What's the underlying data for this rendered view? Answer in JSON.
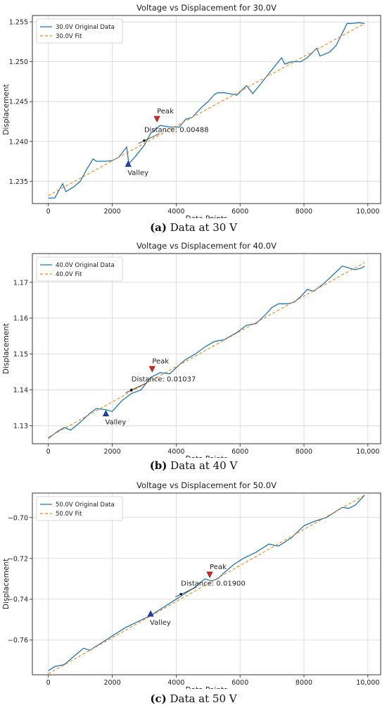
{
  "chart_data": [
    {
      "type": "line",
      "title": "Voltage vs Displacement for 30.0V",
      "xlabel": "Data Points",
      "ylabel": "Displacement",
      "xlim": [
        -500,
        10400
      ],
      "ylim": [
        1.2322,
        1.2558
      ],
      "xticks": [
        0,
        2000,
        4000,
        6000,
        8000,
        10000
      ],
      "xtick_labels": [
        "0",
        "2000",
        "4000",
        "6000",
        "8000",
        "10,000"
      ],
      "yticks": [
        1.235,
        1.24,
        1.245,
        1.25,
        1.255
      ],
      "ytick_labels": [
        "1.235",
        "1.240",
        "1.245",
        "1.250",
        "1.255"
      ],
      "grid": true,
      "legend": "top-left",
      "series": [
        {
          "name": "30.0V Original Data",
          "color": "#1f77b4",
          "style": "solid",
          "x": [
            0,
            200,
            450,
            550,
            800,
            1000,
            1200,
            1400,
            1500,
            1800,
            2000,
            2200,
            2450,
            2520,
            2700,
            3000,
            3200,
            3500,
            3800,
            4100,
            4300,
            4500,
            4800,
            5000,
            5200,
            5300,
            5500,
            5800,
            5900,
            6200,
            6400,
            6700,
            7000,
            7300,
            7400,
            7600,
            7900,
            8100,
            8400,
            8500,
            8800,
            9000,
            9250,
            9350,
            9500,
            9700,
            9900
          ],
          "y": [
            1.2329,
            1.2329,
            1.2347,
            1.2337,
            1.2343,
            1.235,
            1.2365,
            1.2378,
            1.2375,
            1.2375,
            1.2376,
            1.238,
            1.2393,
            1.2372,
            1.238,
            1.2395,
            1.241,
            1.242,
            1.2418,
            1.2418,
            1.2428,
            1.243,
            1.2443,
            1.245,
            1.2459,
            1.2461,
            1.2461,
            1.2459,
            1.2458,
            1.247,
            1.246,
            1.2475,
            1.249,
            1.2505,
            1.2497,
            1.25,
            1.25,
            1.2505,
            1.2517,
            1.2507,
            1.2512,
            1.252,
            1.254,
            1.2548,
            1.2548,
            1.2549,
            1.2548
          ]
        },
        {
          "name": "30.0V Fit",
          "color": "#ff7f0e",
          "style": "dashed",
          "x": [
            0,
            9900
          ],
          "y": [
            1.2332,
            1.2548
          ]
        }
      ],
      "annotations": {
        "peak": {
          "label": "Peak",
          "x": 3400,
          "y": 1.2428
        },
        "valley": {
          "label": "Valley",
          "x": 2500,
          "y": 1.2372
        },
        "distance": {
          "label": "Distance: 0.00488",
          "x": 3000,
          "y": 1.2401
        }
      }
    },
    {
      "type": "line",
      "title": "Voltage vs Displacement for 40.0V",
      "xlabel": "Data Points",
      "ylabel": "Displacement",
      "xlim": [
        -500,
        10400
      ],
      "ylim": [
        1.125,
        1.178
      ],
      "xticks": [
        0,
        2000,
        4000,
        6000,
        8000,
        10000
      ],
      "xtick_labels": [
        "0",
        "2000",
        "4000",
        "6000",
        "8000",
        "10,000"
      ],
      "yticks": [
        1.13,
        1.14,
        1.15,
        1.16,
        1.17
      ],
      "ytick_labels": [
        "1.13",
        "1.14",
        "1.15",
        "1.16",
        "1.17"
      ],
      "grid": true,
      "legend": "top-left",
      "series": [
        {
          "name": "40.0V Original Data",
          "color": "#1f77b4",
          "style": "solid",
          "x": [
            0,
            300,
            500,
            700,
            1000,
            1300,
            1500,
            1800,
            2000,
            2300,
            2600,
            2900,
            3200,
            3500,
            3800,
            4100,
            4300,
            4600,
            4900,
            5200,
            5500,
            5900,
            6200,
            6500,
            6800,
            7000,
            7200,
            7500,
            7700,
            7900,
            8100,
            8300,
            8600,
            8900,
            9200,
            9400,
            9600,
            9800,
            9900
          ],
          "y": [
            1.1265,
            1.1285,
            1.1295,
            1.1288,
            1.131,
            1.1335,
            1.1348,
            1.1345,
            1.134,
            1.137,
            1.139,
            1.14,
            1.1435,
            1.1448,
            1.1445,
            1.147,
            1.1485,
            1.15,
            1.152,
            1.1535,
            1.154,
            1.156,
            1.158,
            1.1585,
            1.161,
            1.163,
            1.164,
            1.164,
            1.1645,
            1.166,
            1.168,
            1.1675,
            1.1695,
            1.172,
            1.1745,
            1.174,
            1.1735,
            1.174,
            1.1745
          ]
        },
        {
          "name": "40.0V Fit",
          "color": "#ff7f0e",
          "style": "dashed",
          "x": [
            0,
            9900
          ],
          "y": [
            1.1268,
            1.1755
          ]
        }
      ],
      "annotations": {
        "peak": {
          "label": "Peak",
          "x": 3250,
          "y": 1.1458
        },
        "valley": {
          "label": "Valley",
          "x": 1800,
          "y": 1.1335
        },
        "distance": {
          "label": "Distance: 0.01037",
          "x": 2600,
          "y": 1.14
        }
      }
    },
    {
      "type": "line",
      "title": "Voltage vs Displacement for 50.0V",
      "xlabel": "Data Points",
      "ylabel": "Displacement",
      "xlim": [
        -500,
        10400
      ],
      "ylim": [
        -0.777,
        -0.688
      ],
      "xticks": [
        0,
        2000,
        4000,
        6000,
        8000,
        10000
      ],
      "xtick_labels": [
        "0",
        "2000",
        "4000",
        "6000",
        "8000",
        "10,000"
      ],
      "yticks": [
        -0.76,
        -0.74,
        -0.72,
        -0.7
      ],
      "ytick_labels": [
        "−0.76",
        "−0.74",
        "−0.72",
        "−0.70"
      ],
      "grid": true,
      "legend": "top-left",
      "series": [
        {
          "name": "50.0V Original Data",
          "color": "#1f77b4",
          "style": "solid",
          "x": [
            0,
            200,
            500,
            800,
            1100,
            1300,
            1600,
            2000,
            2400,
            2800,
            3200,
            3600,
            4000,
            4300,
            4600,
            4900,
            5100,
            5300,
            5500,
            5800,
            6100,
            6500,
            6900,
            7200,
            7600,
            8000,
            8300,
            8700,
            9000,
            9200,
            9400,
            9600,
            9900
          ],
          "y": [
            -0.775,
            -0.773,
            -0.772,
            -0.768,
            -0.764,
            -0.765,
            -0.762,
            -0.758,
            -0.754,
            -0.751,
            -0.748,
            -0.744,
            -0.74,
            -0.737,
            -0.734,
            -0.73,
            -0.731,
            -0.73,
            -0.727,
            -0.723,
            -0.72,
            -0.717,
            -0.713,
            -0.714,
            -0.71,
            -0.704,
            -0.702,
            -0.7,
            -0.697,
            -0.695,
            -0.6955,
            -0.694,
            -0.689
          ]
        },
        {
          "name": "50.0V Fit",
          "color": "#ff7f0e",
          "style": "dashed",
          "x": [
            0,
            9900
          ],
          "y": [
            -0.7765,
            -0.689
          ]
        }
      ],
      "annotations": {
        "peak": {
          "label": "Peak",
          "x": 5050,
          "y": -0.728
        },
        "valley": {
          "label": "Valley",
          "x": 3200,
          "y": -0.747
        },
        "distance": {
          "label": "Distance: 0.01900",
          "x": 4150,
          "y": -0.7375
        }
      }
    }
  ],
  "captions": [
    {
      "letter": "(a)",
      "text": " Data at 30 V"
    },
    {
      "letter": "(b)",
      "text": " Data at 40 V"
    },
    {
      "letter": "(c)",
      "text": " Data at 50 V"
    }
  ]
}
